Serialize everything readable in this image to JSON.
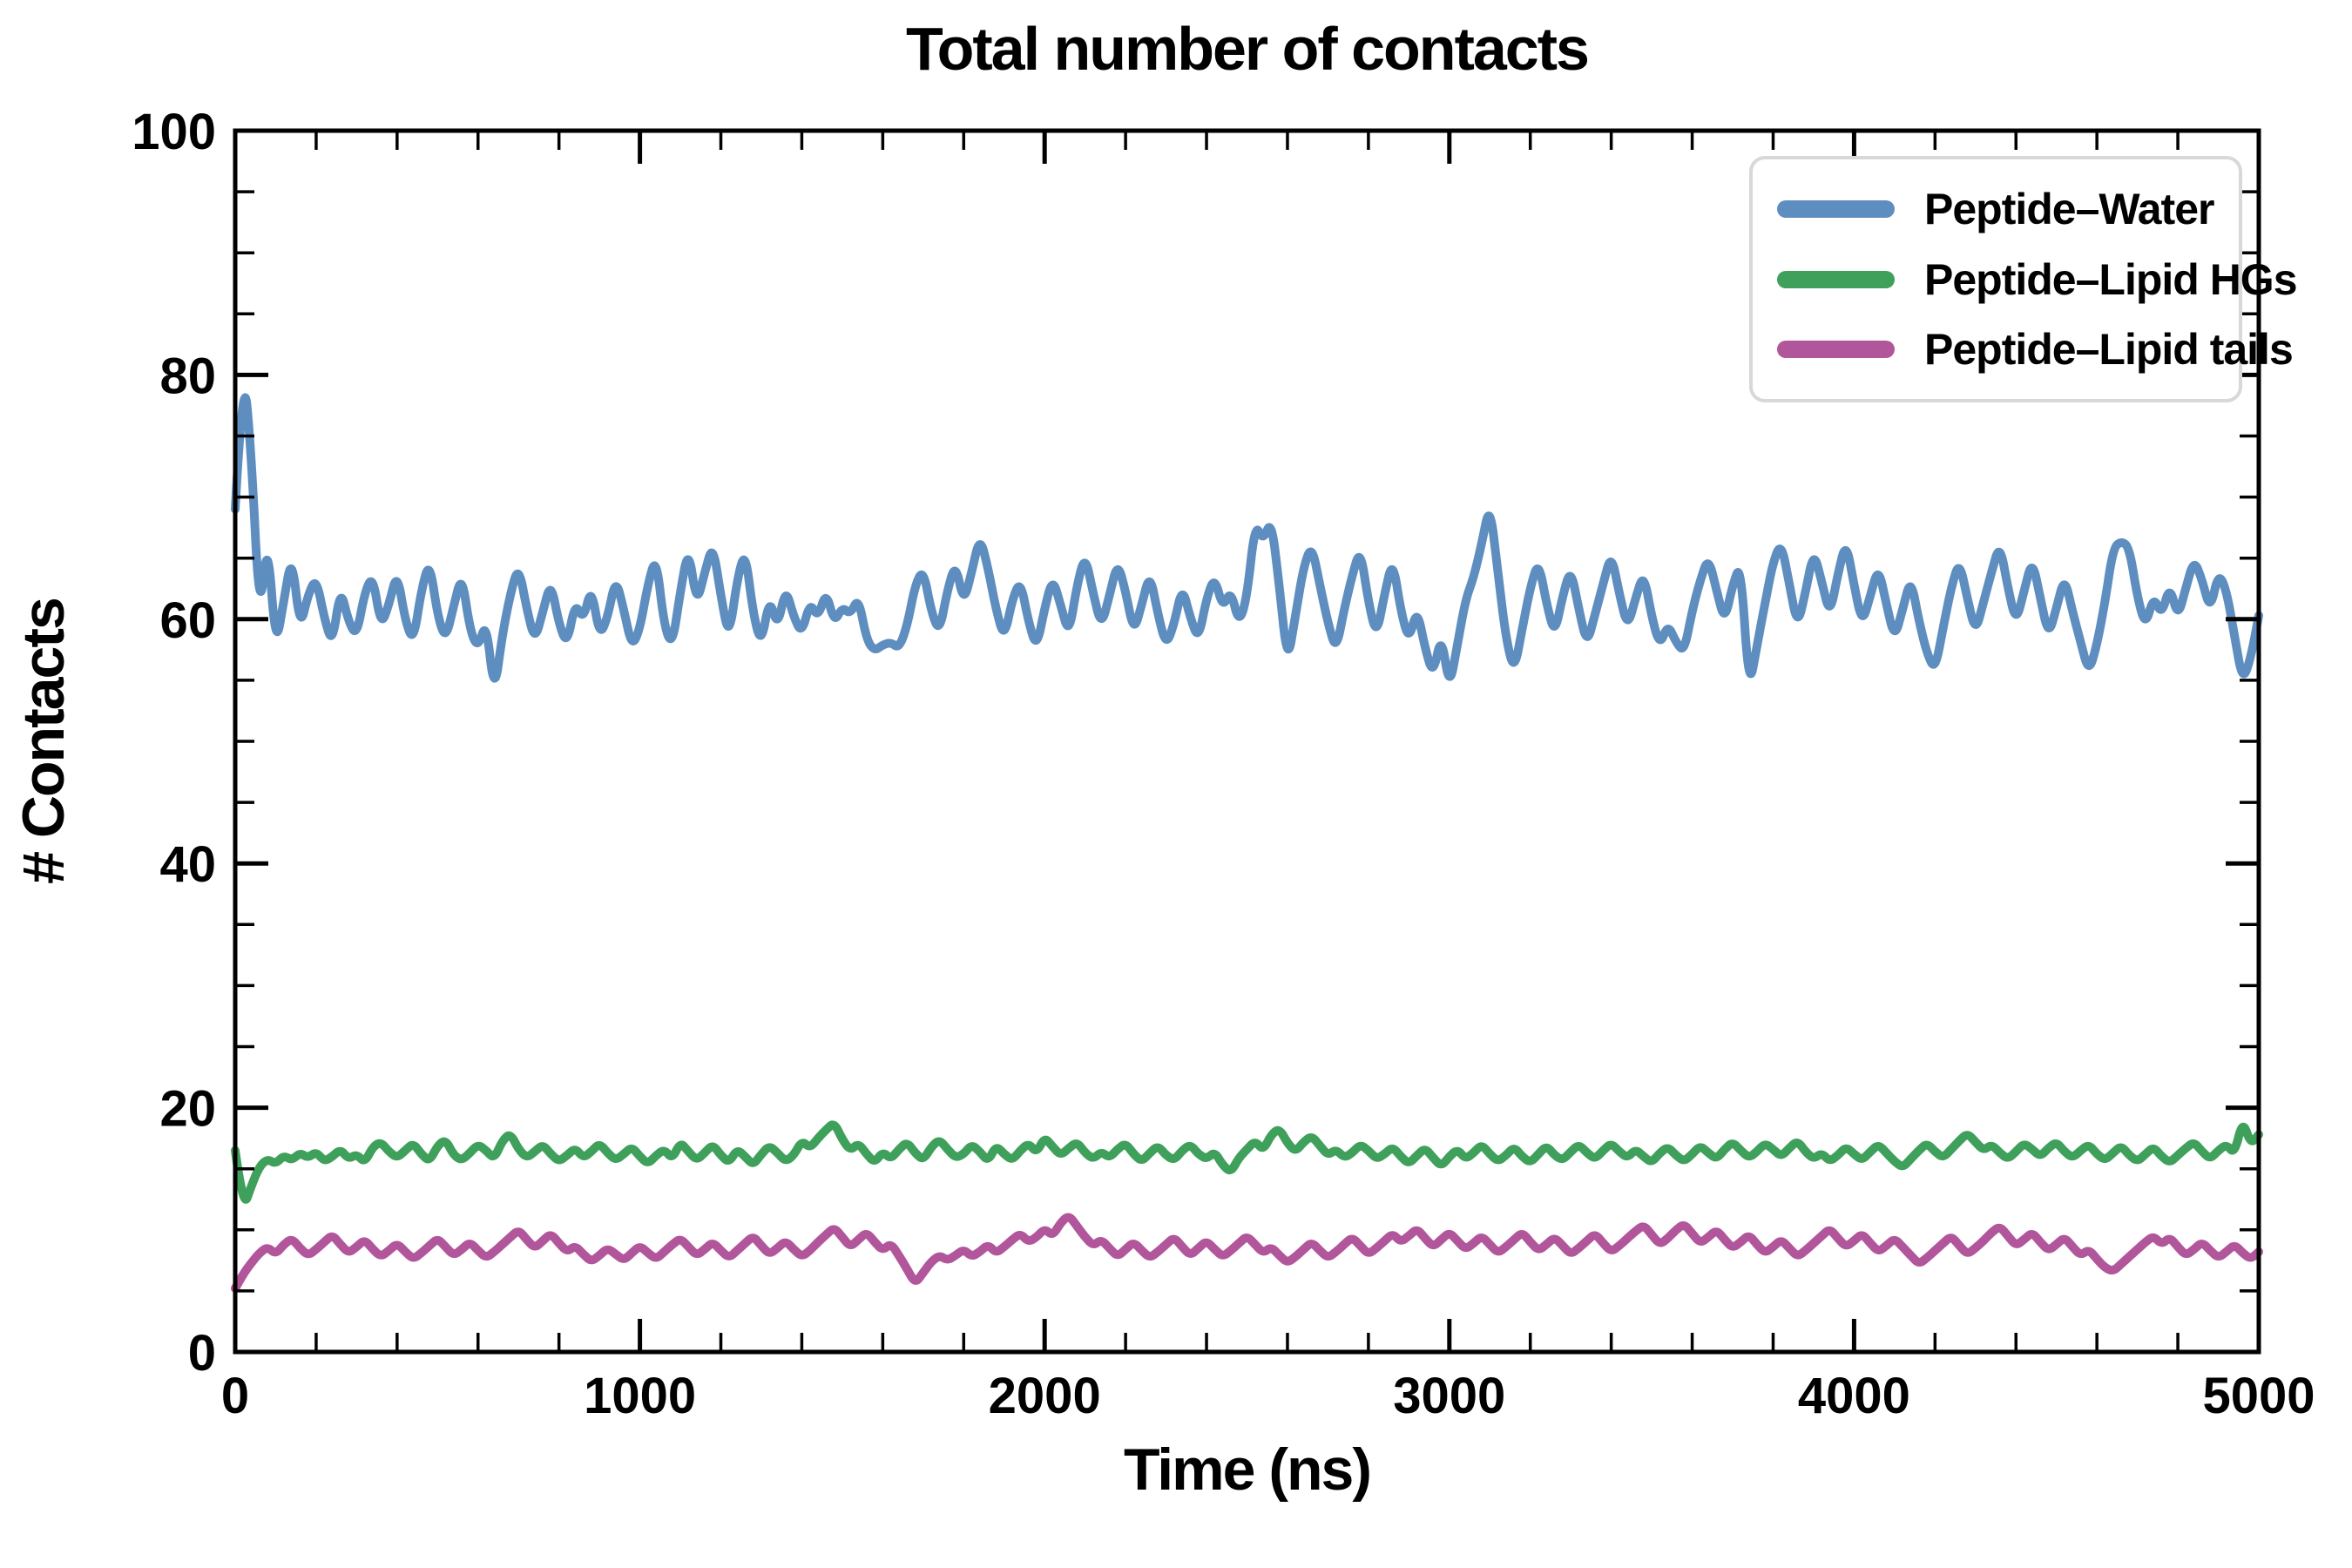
{
  "title": "Total number of contacts",
  "axes": {
    "xlabel": "Time (ns)",
    "ylabel": "# Contacts"
  },
  "colors": {
    "background": "#ffffff",
    "axis": "#000000",
    "legend_border": "#d8d8d8",
    "peptide_water": "#5E8EBF",
    "peptide_lipid_hgs": "#3FA05C",
    "peptide_lipid_tails": "#B2569B"
  },
  "chart_data": {
    "type": "line",
    "title": "Total number of contacts",
    "xlabel": "Time (ns)",
    "ylabel": "# Contacts",
    "xlim": [
      0,
      5000
    ],
    "ylim": [
      0,
      100
    ],
    "x_major_ticks": [
      0,
      1000,
      2000,
      3000,
      4000,
      5000
    ],
    "x_minor_step": 200,
    "y_major_ticks": [
      0,
      20,
      40,
      60,
      80,
      100
    ],
    "y_minor_step": 5,
    "grid": false,
    "legend_position": "upper right",
    "x_step": 20,
    "line_width": 10,
    "series": [
      {
        "name": "Peptide–Water",
        "color": "#5E8EBF",
        "values": [
          69.0,
          81.0,
          73.5,
          60.0,
          66.8,
          57.6,
          61.5,
          65.3,
          59.2,
          62.0,
          63.4,
          60.1,
          57.9,
          62.6,
          59.8,
          58.6,
          62.2,
          63.6,
          59.4,
          61.2,
          63.9,
          59.9,
          58.1,
          62.4,
          64.8,
          60.3,
          58.3,
          61.1,
          63.7,
          59.1,
          57.6,
          59.9,
          53.8,
          58.7,
          62.1,
          64.4,
          60.9,
          58.2,
          60.6,
          63.1,
          59.6,
          57.9,
          61.4,
          59.9,
          62.7,
          58.6,
          60.1,
          63.4,
          60.8,
          57.7,
          59.2,
          62.9,
          65.2,
          59.4,
          57.8,
          62.3,
          65.9,
          61.2,
          63.8,
          66.2,
          61.9,
          58.4,
          63.2,
          65.7,
          60.4,
          57.9,
          61.8,
          59.3,
          62.6,
          60.2,
          58.8,
          61.4,
          60.1,
          62.3,
          59.7,
          61.0,
          60.4,
          61.8,
          58.3,
          57.4,
          57.9,
          58.1,
          57.6,
          59.4,
          62.8,
          64.1,
          60.6,
          58.9,
          62.4,
          64.6,
          61.3,
          63.9,
          66.8,
          64.2,
          60.8,
          58.4,
          61.6,
          63.2,
          59.8,
          57.6,
          60.9,
          63.4,
          61.1,
          58.7,
          62.8,
          65.3,
          62.1,
          59.4,
          61.9,
          64.7,
          62.3,
          58.9,
          61.2,
          63.8,
          60.4,
          57.8,
          59.6,
          62.7,
          60.1,
          58.3,
          61.7,
          63.5,
          60.9,
          62.4,
          59.6,
          61.8,
          67.9,
          66.4,
          68.2,
          62.7,
          56.3,
          60.4,
          64.3,
          66.1,
          62.8,
          59.7,
          57.4,
          60.8,
          63.6,
          65.8,
          61.4,
          58.6,
          62.1,
          64.9,
          60.7,
          58.2,
          60.9,
          57.6,
          55.4,
          58.8,
          54.3,
          57.9,
          61.6,
          63.4,
          66.2,
          69.5,
          63.8,
          58.4,
          55.7,
          59.2,
          62.6,
          64.8,
          61.3,
          58.7,
          61.9,
          64.2,
          60.8,
          57.9,
          60.4,
          62.9,
          65.4,
          62.1,
          59.3,
          61.7,
          63.8,
          60.2,
          57.8,
          59.6,
          58.1,
          57.3,
          60.7,
          63.2,
          65.1,
          62.4,
          59.8,
          62.8,
          64.6,
          54.2,
          57.8,
          61.3,
          64.7,
          66.3,
          62.9,
          59.4,
          62.2,
          65.6,
          63.1,
          60.3,
          63.7,
          66.4,
          62.8,
          59.6,
          61.9,
          64.3,
          61.2,
          58.4,
          60.8,
          63.4,
          59.9,
          57.2,
          55.8,
          59.3,
          62.6,
          64.8,
          61.7,
          58.9,
          61.4,
          63.9,
          66.2,
          62.6,
          59.7,
          62.3,
          64.9,
          61.8,
          58.6,
          60.9,
          63.5,
          60.6,
          58.1,
          55.6,
          57.9,
          61.4,
          65.8,
          66.4,
          65.9,
          61.8,
          59.4,
          61.9,
          60.3,
          62.8,
          60.1,
          62.6,
          64.9,
          63.2,
          60.7,
          63.8,
          62.4,
          58.6,
          54.9,
          56.8,
          60.3
        ]
      },
      {
        "name": "Peptide–Lipid HGs",
        "color": "#3FA05C",
        "values": [
          16.5,
          11.7,
          13.6,
          15.2,
          15.8,
          15.4,
          16.1,
          15.7,
          16.3,
          15.9,
          16.4,
          15.6,
          16.0,
          16.6,
          15.8,
          16.2,
          15.5,
          16.8,
          17.2,
          16.4,
          15.9,
          16.5,
          17.1,
          16.2,
          15.6,
          16.9,
          17.4,
          16.1,
          15.7,
          16.3,
          17.0,
          16.5,
          15.8,
          17.3,
          17.9,
          16.6,
          15.9,
          16.4,
          17.0,
          16.2,
          15.6,
          16.1,
          16.7,
          15.9,
          16.4,
          17.1,
          16.3,
          15.7,
          16.2,
          16.8,
          16.0,
          15.4,
          16.1,
          16.6,
          15.8,
          17.2,
          16.4,
          15.7,
          16.3,
          17.0,
          16.1,
          15.5,
          16.6,
          16.0,
          15.3,
          16.2,
          16.9,
          16.3,
          15.6,
          16.1,
          17.3,
          16.7,
          17.5,
          18.2,
          18.8,
          17.4,
          16.5,
          17.1,
          16.2,
          15.5,
          16.4,
          15.8,
          16.6,
          17.2,
          16.3,
          15.7,
          16.8,
          17.4,
          16.6,
          15.9,
          16.2,
          17.0,
          16.4,
          15.6,
          16.9,
          16.2,
          15.7,
          16.5,
          17.1,
          16.3,
          17.6,
          16.8,
          16.1,
          16.7,
          17.2,
          16.3,
          15.8,
          16.4,
          15.9,
          16.6,
          17.1,
          16.2,
          15.6,
          16.3,
          16.9,
          16.1,
          15.7,
          16.5,
          17.0,
          16.2,
          15.8,
          16.4,
          15.3,
          14.7,
          15.9,
          16.6,
          17.3,
          16.5,
          17.8,
          18.3,
          17.1,
          16.4,
          17.2,
          17.7,
          16.9,
          16.1,
          16.6,
          15.9,
          16.3,
          17.0,
          16.5,
          15.8,
          16.2,
          16.8,
          16.0,
          15.4,
          16.1,
          16.7,
          15.9,
          15.2,
          16.0,
          16.6,
          15.8,
          16.3,
          17.0,
          16.2,
          15.6,
          16.1,
          16.8,
          16.0,
          15.5,
          16.2,
          16.9,
          16.1,
          15.7,
          16.4,
          17.0,
          16.3,
          15.8,
          16.5,
          17.1,
          16.4,
          15.9,
          16.6,
          16.0,
          15.5,
          16.3,
          16.8,
          16.1,
          15.6,
          16.2,
          16.9,
          16.3,
          15.8,
          16.6,
          17.2,
          16.5,
          15.9,
          16.4,
          17.1,
          16.6,
          16.0,
          16.7,
          17.3,
          16.4,
          15.8,
          16.3,
          15.6,
          16.1,
          16.8,
          16.2,
          15.7,
          16.4,
          17.0,
          16.3,
          15.6,
          15.1,
          15.8,
          16.5,
          17.1,
          16.4,
          15.9,
          16.6,
          17.3,
          17.9,
          17.2,
          16.5,
          17.0,
          16.3,
          15.8,
          16.4,
          17.1,
          16.6,
          16.0,
          16.7,
          17.2,
          16.4,
          15.9,
          16.5,
          17.0,
          16.2,
          15.7,
          16.3,
          16.9,
          16.1,
          15.6,
          16.2,
          16.8,
          16.0,
          15.5,
          16.1,
          16.7,
          17.2,
          16.4,
          15.8,
          16.5,
          17.0,
          16.2,
          19.0,
          17.0,
          17.8
        ]
      },
      {
        "name": "Peptide–Lipid tails",
        "color": "#B2569B",
        "values": [
          5.2,
          6.4,
          7.3,
          8.1,
          8.6,
          8.0,
          8.8,
          9.3,
          8.5,
          7.9,
          8.4,
          9.0,
          9.6,
          8.8,
          8.1,
          8.6,
          9.2,
          8.4,
          7.8,
          8.3,
          8.9,
          8.2,
          7.6,
          8.1,
          8.7,
          9.3,
          8.6,
          7.9,
          8.4,
          9.0,
          8.3,
          7.7,
          8.2,
          8.8,
          9.4,
          10.0,
          9.2,
          8.5,
          9.1,
          9.7,
          8.9,
          8.2,
          8.7,
          8.0,
          7.4,
          7.9,
          8.5,
          8.0,
          7.5,
          8.1,
          8.7,
          8.1,
          7.6,
          8.2,
          8.8,
          9.3,
          8.6,
          7.9,
          8.4,
          9.0,
          8.3,
          7.7,
          8.3,
          8.9,
          9.5,
          8.7,
          8.0,
          8.5,
          9.1,
          8.4,
          7.8,
          8.3,
          9.0,
          9.6,
          10.2,
          9.4,
          8.6,
          9.2,
          9.8,
          9.0,
          8.3,
          8.9,
          7.9,
          6.8,
          5.6,
          6.5,
          7.4,
          7.9,
          7.5,
          7.9,
          8.4,
          7.8,
          8.2,
          8.8,
          8.1,
          8.6,
          9.2,
          9.7,
          9.0,
          9.4,
          10.1,
          9.5,
          10.6,
          11.2,
          10.3,
          9.4,
          8.7,
          9.2,
          8.5,
          7.8,
          8.4,
          9.0,
          8.3,
          7.7,
          8.2,
          8.8,
          9.4,
          8.6,
          7.9,
          8.5,
          9.1,
          8.4,
          7.8,
          8.3,
          8.9,
          9.5,
          8.8,
          8.1,
          8.6,
          7.9,
          7.3,
          7.8,
          8.4,
          9.0,
          8.3,
          7.7,
          8.2,
          8.8,
          9.4,
          8.7,
          8.0,
          8.5,
          9.1,
          9.7,
          9.0,
          9.5,
          10.1,
          9.3,
          8.6,
          9.2,
          9.8,
          9.1,
          8.4,
          8.9,
          9.5,
          8.8,
          8.1,
          8.6,
          9.2,
          9.8,
          9.0,
          8.3,
          8.8,
          9.4,
          8.7,
          8.0,
          8.5,
          9.1,
          9.7,
          8.9,
          8.2,
          8.7,
          9.3,
          9.9,
          10.4,
          9.6,
          8.8,
          9.3,
          10.0,
          10.5,
          9.7,
          8.9,
          9.4,
          10.0,
          9.2,
          8.5,
          9.0,
          9.6,
          8.8,
          8.1,
          8.6,
          9.2,
          8.5,
          7.8,
          8.3,
          8.9,
          9.5,
          10.1,
          9.3,
          8.6,
          9.1,
          9.7,
          8.9,
          8.2,
          8.7,
          9.3,
          8.6,
          7.9,
          7.2,
          7.7,
          8.3,
          8.9,
          9.5,
          8.7,
          8.0,
          8.5,
          9.1,
          9.8,
          10.3,
          9.5,
          8.7,
          9.2,
          9.8,
          9.0,
          8.3,
          8.8,
          9.4,
          8.6,
          7.9,
          8.4,
          7.6,
          6.9,
          6.6,
          7.2,
          7.8,
          8.4,
          9.0,
          9.5,
          8.8,
          9.4,
          8.6,
          7.9,
          8.4,
          9.0,
          8.3,
          7.7,
          8.2,
          8.8,
          8.1,
          7.6,
          8.2
        ]
      }
    ]
  }
}
